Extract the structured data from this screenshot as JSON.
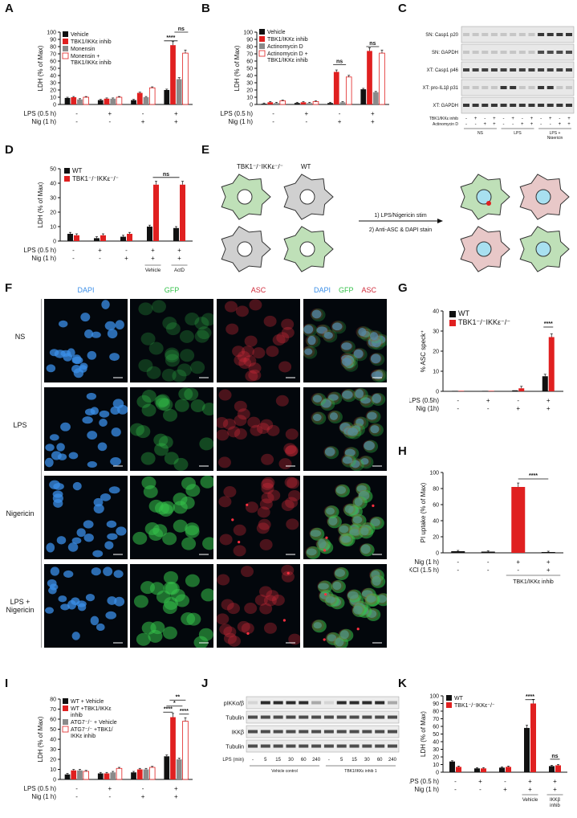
{
  "panels": {
    "A": "A",
    "B": "B",
    "C": "C",
    "D": "D",
    "E": "E",
    "F": "F",
    "G": "G",
    "H": "H",
    "I": "I",
    "J": "J",
    "K": "K"
  },
  "charts": {
    "A": {
      "type": "bar",
      "ylabel": "LDH (% of Max)",
      "ylim": [
        0,
        100
      ],
      "yticks": [
        0,
        10,
        20,
        30,
        40,
        50,
        60,
        70,
        80,
        90,
        100
      ],
      "series": [
        {
          "name": "Vehicle",
          "color": "#111111",
          "values": [
            9,
            6,
            6,
            20
          ]
        },
        {
          "name": "TBK1/IKKε inhib",
          "color": "#e02020",
          "values": [
            10,
            8,
            16,
            82
          ]
        },
        {
          "name": "Monensin",
          "color": "#8a8a8a",
          "values": [
            7,
            8,
            10,
            35
          ]
        },
        {
          "name": "Monensin +\nTBK1/IKKε inhib",
          "color": "#ffffff",
          "values": [
            10,
            10,
            23,
            71
          ]
        }
      ],
      "cond_rows": [
        {
          "label": "LPS (0.5 h)",
          "values": [
            "-",
            "+",
            "-",
            "+"
          ]
        },
        {
          "label": "Nig (1 h)",
          "values": [
            "-",
            "-",
            "+",
            "+"
          ]
        }
      ],
      "sig": [
        "****",
        "ns"
      ]
    },
    "B": {
      "type": "bar",
      "ylabel": "LDH (% of Max)",
      "ylim": [
        0,
        100
      ],
      "yticks": [
        0,
        10,
        20,
        30,
        40,
        50,
        60,
        70,
        80,
        90,
        100
      ],
      "series": [
        {
          "name": "Vehicle",
          "color": "#111111",
          "values": [
            1,
            2,
            2,
            21
          ]
        },
        {
          "name": "TBK1/IKKε inhib",
          "color": "#e02020",
          "values": [
            3,
            3,
            45,
            74
          ]
        },
        {
          "name": "Actinomycin D",
          "color": "#8a8a8a",
          "values": [
            2,
            2,
            3,
            17
          ]
        },
        {
          "name": "Actinomycin D +\nTBK1/IKKε inhib",
          "color": "#ffffff",
          "values": [
            5,
            4,
            38,
            71
          ]
        }
      ],
      "cond_rows": [
        {
          "label": "LPS (0.5 h)",
          "values": [
            "-",
            "+",
            "-",
            "+"
          ]
        },
        {
          "label": "Nig (1 h)",
          "values": [
            "-",
            "-",
            "+",
            "+"
          ]
        }
      ],
      "sig": [
        "ns",
        "ns"
      ]
    },
    "D": {
      "type": "bar",
      "ylabel": "LDH (% of Max)",
      "ylim": [
        0,
        50
      ],
      "yticks": [
        0,
        10,
        20,
        30,
        40,
        50
      ],
      "series": [
        {
          "name": "WT",
          "color": "#111111",
          "values": [
            5,
            2,
            3,
            10,
            9
          ]
        },
        {
          "name": "TBK1⁻/⁻IKKε⁻/⁻",
          "color": "#e02020",
          "values": [
            4,
            4,
            5,
            39,
            39
          ]
        }
      ],
      "cond_rows": [
        {
          "label": "LPS (0.5 h)",
          "values": [
            "-",
            "+",
            "-",
            "+",
            "+"
          ]
        },
        {
          "label": "Nig (1 h)",
          "values": [
            "-",
            "-",
            "+",
            "+",
            "+"
          ]
        }
      ],
      "groups": [
        "Vehicle",
        "ActD"
      ],
      "sig": [
        "ns"
      ]
    },
    "G": {
      "type": "bar",
      "ylabel": "% ASC speck⁺",
      "ylim": [
        0,
        40
      ],
      "yticks": [
        0,
        10,
        20,
        30,
        40
      ],
      "series": [
        {
          "name": "WT",
          "color": "#111111",
          "values": [
            0,
            0,
            0.5,
            7.5
          ]
        },
        {
          "name": "TBK1⁻/⁻IKKε⁻/⁻",
          "color": "#e02020",
          "values": [
            0,
            0,
            1.5,
            27
          ]
        }
      ],
      "cond_rows": [
        {
          "label": "LPS (0.5h)",
          "values": [
            "-",
            "+",
            "-",
            "+"
          ]
        },
        {
          "label": "Nig (1h)",
          "values": [
            "-",
            "-",
            "+",
            "+"
          ]
        }
      ],
      "sig": [
        "****"
      ]
    },
    "H": {
      "type": "bar",
      "ylabel": "PI uptake (% of Max)",
      "ylim": [
        0,
        100
      ],
      "yticks": [
        0,
        20,
        40,
        60,
        80,
        100
      ],
      "series": [
        {
          "name": "",
          "color": "#e02020",
          "values": [
            2,
            1.5,
            82,
            1
          ]
        }
      ],
      "colors": [
        "#111111",
        "#111111",
        "#e02020",
        "#111111"
      ],
      "cond_rows": [
        {
          "label": "Nig (1 h)",
          "values": [
            "-",
            "-",
            "+",
            "+"
          ]
        },
        {
          "label": "KCl (1.5 h)",
          "values": [
            "-",
            "-",
            "-",
            "+"
          ]
        }
      ],
      "group": "TBK1/IKKε inhib",
      "sig": [
        "****"
      ]
    },
    "I": {
      "type": "bar",
      "ylabel": "LDH (% of Max)",
      "ylim": [
        0,
        80
      ],
      "yticks": [
        0,
        10,
        20,
        30,
        40,
        50,
        60,
        70,
        80
      ],
      "series": [
        {
          "name": "WT + Vehicle",
          "color": "#111111",
          "values": [
            5,
            6,
            7,
            23
          ]
        },
        {
          "name": "WT +TBK1/IKKε\ninhib",
          "color": "#e02020",
          "values": [
            9,
            6,
            10,
            62
          ]
        },
        {
          "name": "ATG7⁻/⁻ + Vehicle",
          "color": "#8a8a8a",
          "values": [
            9,
            7,
            10,
            20
          ]
        },
        {
          "name": "ATG7⁻/⁻ +TBK1/\nIKKε inhib",
          "color": "#ffffff",
          "values": [
            8,
            11,
            12,
            58
          ]
        }
      ],
      "cond_rows": [
        {
          "label": "LPS (0.5 h)",
          "values": [
            "-",
            "+",
            "-",
            "+"
          ]
        },
        {
          "label": "Nig (1 h)",
          "values": [
            "-",
            "-",
            "+",
            "+"
          ]
        }
      ],
      "sig": [
        "**",
        "*",
        "****",
        "****"
      ]
    },
    "K": {
      "type": "bar",
      "ylabel": "LDH (% of Max)",
      "ylim": [
        0,
        100
      ],
      "yticks": [
        0,
        10,
        20,
        30,
        40,
        50,
        60,
        70,
        80,
        90,
        100
      ],
      "series": [
        {
          "name": "WT",
          "color": "#111111",
          "values": [
            14,
            5,
            6,
            58,
            8
          ]
        },
        {
          "name": "TBK1⁻/⁻IKKε⁻/⁻",
          "color": "#e02020",
          "values": [
            7,
            5,
            7,
            90,
            9
          ]
        }
      ],
      "cond_rows": [
        {
          "label": "LPS (0.5 h)",
          "values": [
            "-",
            "+",
            "-",
            "+",
            "+"
          ]
        },
        {
          "label": "Nig (1 h)",
          "values": [
            "-",
            "-",
            "+",
            "+",
            "+"
          ]
        }
      ],
      "groups": [
        "Vehicle",
        "IKKβ\ninhib"
      ],
      "sig": [
        "****",
        "ns"
      ]
    }
  },
  "blotC": {
    "rows": [
      "SN: Casp1 p20",
      "SN: GAPDH",
      "XT: Casp1 p46",
      "XT: pro-IL1β p31",
      "XT: GAPDH"
    ],
    "cond_rows": [
      {
        "label": "TBK1/IKKε inhib",
        "values": [
          "-",
          "+",
          "-",
          "+",
          "-",
          "+",
          "-",
          "+",
          "-",
          "+",
          "-",
          "+"
        ]
      },
      {
        "label": "Actinomycin D",
        "values": [
          "-",
          "-",
          "+",
          "+",
          "-",
          "-",
          "+",
          "+",
          "-",
          "-",
          "+",
          "+"
        ]
      }
    ],
    "groups": [
      "NS",
      "LPS",
      "LPS +\nNigericin"
    ]
  },
  "blotJ": {
    "rows": [
      "pIKKα/β",
      "Tubulin",
      "IKKβ",
      "Tubulin"
    ],
    "xlabel": "LPS (min)",
    "timepoints": [
      "-",
      "5",
      "15",
      "30",
      "60",
      "240",
      "-",
      "5",
      "15",
      "30",
      "60",
      "240"
    ],
    "groups": [
      "Vehicle control",
      "TBK1/IKKε inhib 1"
    ]
  },
  "schemaE": {
    "left_labels": [
      "TBK1⁻/⁻IKKε⁻/⁻",
      "WT"
    ],
    "steps": [
      "1) LPS/Nigericin stim",
      "2) Anti-ASC & DAPI stain"
    ]
  },
  "micrographF": {
    "columns": [
      "DAPI",
      "GFP",
      "ASC"
    ],
    "merge_labels": [
      "DAPI",
      "GFP",
      "ASC"
    ],
    "rows": [
      "NS",
      "LPS",
      "Nigericin",
      "LPS +\nNigericin"
    ],
    "colors": {
      "dapi": "#3b8fe8",
      "gfp": "#34c24a",
      "asc": "#d02a3a"
    }
  }
}
